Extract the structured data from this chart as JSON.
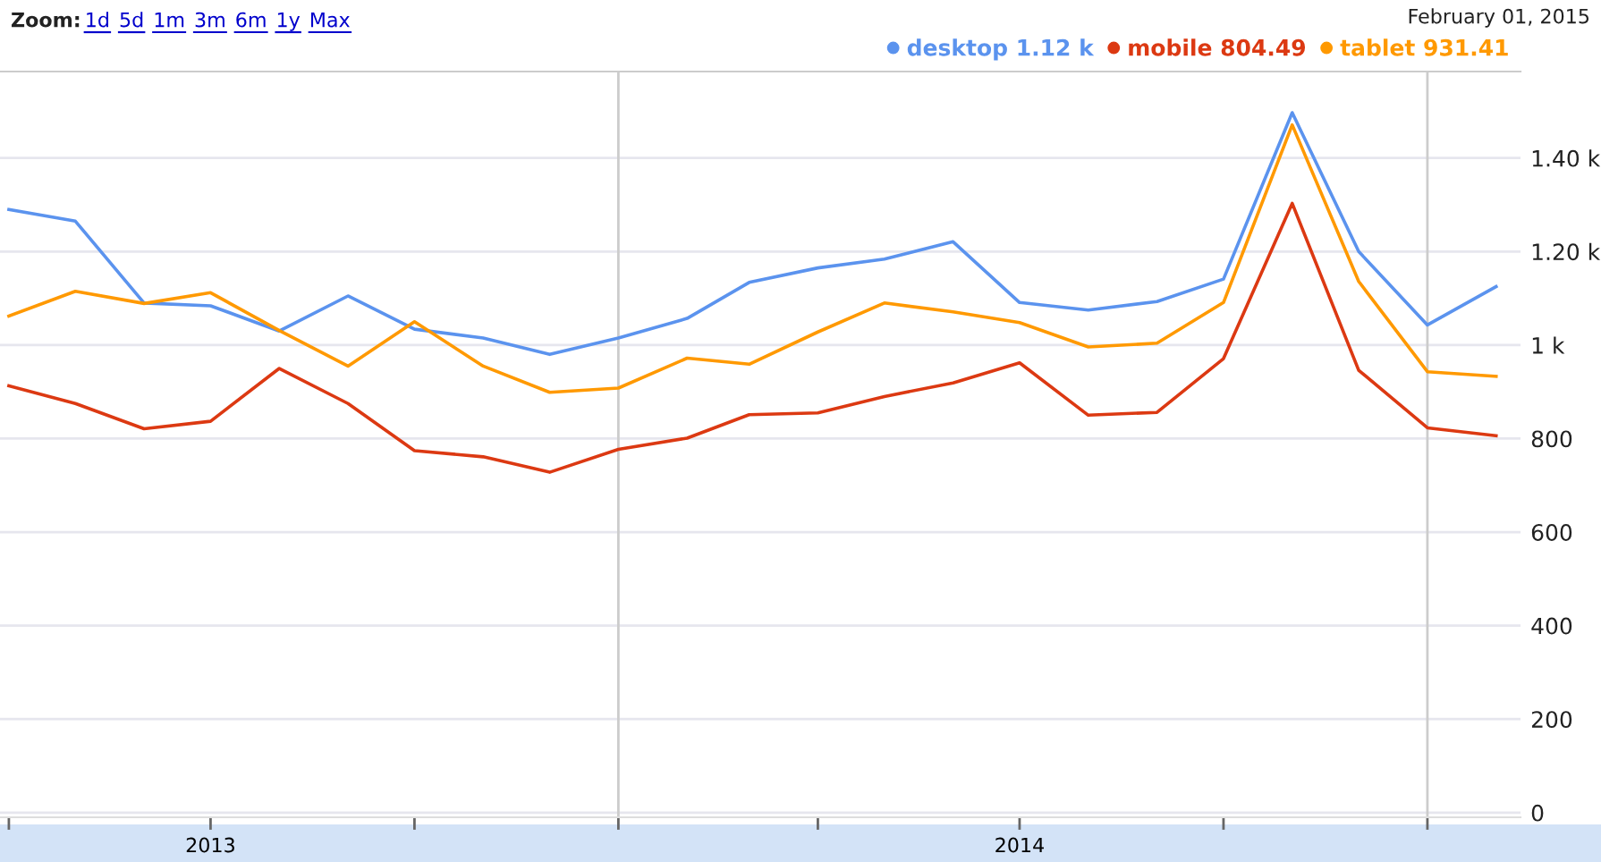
{
  "chart_data": {
    "type": "line",
    "x": [
      "2013-04-01",
      "2013-05-01",
      "2013-06-01",
      "2013-07-01",
      "2013-08-01",
      "2013-09-01",
      "2013-10-01",
      "2013-11-01",
      "2013-12-01",
      "2014-01-01",
      "2014-02-01",
      "2014-03-01",
      "2014-04-01",
      "2014-05-01",
      "2014-06-01",
      "2014-07-01",
      "2014-08-01",
      "2014-09-01",
      "2014-10-01",
      "2014-11-01",
      "2014-12-01",
      "2015-01-01",
      "2015-02-01"
    ],
    "series": [
      {
        "name": "desktop 1.12 k",
        "color": "#5b93ee",
        "values": [
          1290,
          1265,
          1090,
          1084,
          1030,
          1105,
          1034,
          1015,
          980,
          1015,
          1057,
          1134,
          1165,
          1184,
          1221,
          1091,
          1075,
          1093,
          1141,
          1497,
          1200,
          1043,
          1125
        ]
      },
      {
        "name": "mobile 804.49",
        "color": "#dc3912",
        "values": [
          913,
          875,
          821,
          837,
          950,
          875,
          774,
          761,
          728,
          777,
          801,
          851,
          855,
          890,
          919,
          962,
          850,
          856,
          971,
          1303,
          946,
          823,
          806
        ]
      },
      {
        "name": "tablet 931.41",
        "color": "#ff9900",
        "values": [
          1062,
          1115,
          1089,
          1112,
          1031,
          955,
          1050,
          955,
          899,
          908,
          972,
          959,
          1028,
          1090,
          1071,
          1048,
          996,
          1004,
          1091,
          1471,
          1136,
          943,
          933
        ]
      }
    ],
    "xlim": [
      "2013-03-28",
      "2015-02-12"
    ],
    "xticks": [
      {
        "value": "2013-04-01",
        "label": null
      },
      {
        "value": "2013-07-01",
        "label": "2013"
      },
      {
        "value": "2013-10-01",
        "label": null
      },
      {
        "value": "2014-01-01",
        "label": null
      },
      {
        "value": "2014-04-01",
        "label": null
      },
      {
        "value": "2014-07-01",
        "label": "2014"
      },
      {
        "value": "2014-10-01",
        "label": null
      },
      {
        "value": "2015-01-01",
        "label": null
      }
    ],
    "ylim": [
      -10,
      1585
    ],
    "yticks": [
      0,
      200,
      400,
      600,
      800,
      {
        "value": 1000,
        "label": "1 k"
      },
      {
        "value": 1200,
        "label": "1.20 k"
      },
      {
        "value": 1400,
        "label": "1.40 k"
      }
    ],
    "grid": "y",
    "legend": "top right",
    "ref_lines": [
      {
        "axis": "x",
        "value": "2014-01-01",
        "label": null,
        "color": "#cccccc"
      },
      {
        "axis": "x",
        "value": "2015-01-01",
        "label": null,
        "color": "#cccccc"
      }
    ],
    "annotations": [
      "Zoom:",
      "1d",
      "5d",
      "1m",
      "3m",
      "6m",
      "1y",
      "Max",
      "February 01, 2015"
    ]
  }
}
